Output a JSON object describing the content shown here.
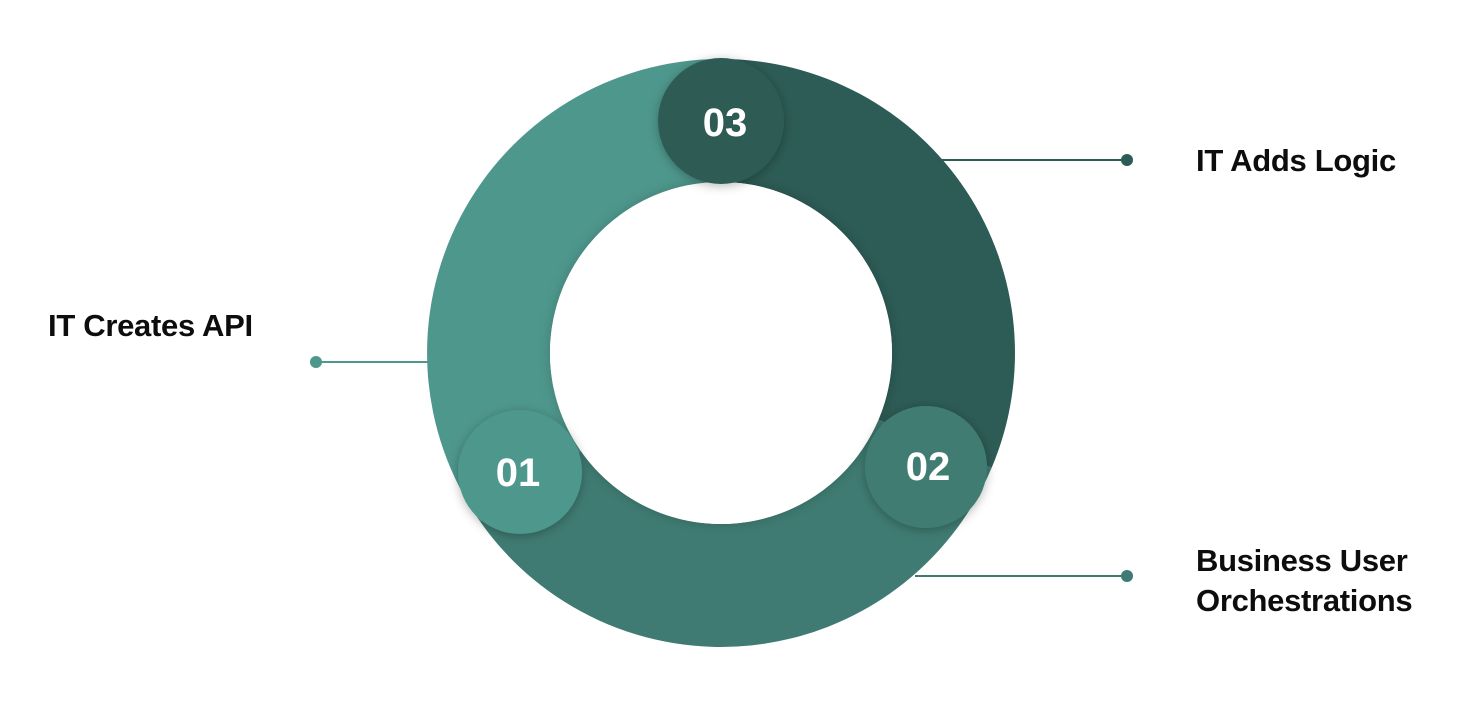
{
  "steps": [
    {
      "number": "01",
      "label": "IT Creates API",
      "color": "#4e978c"
    },
    {
      "number": "02",
      "label_line1": "Business User",
      "label_line2": "Orchestrations",
      "color": "#3f7b72"
    },
    {
      "number": "03",
      "label": "IT Adds Logic",
      "color": "#2d5b55"
    }
  ],
  "colors": {
    "connector_light": "#4e978c",
    "connector_mid": "#3f7b72",
    "connector_dark": "#2d5b55",
    "background": "#ffffff",
    "label_text": "#0d0d0d",
    "number_text": "#ffffff"
  }
}
